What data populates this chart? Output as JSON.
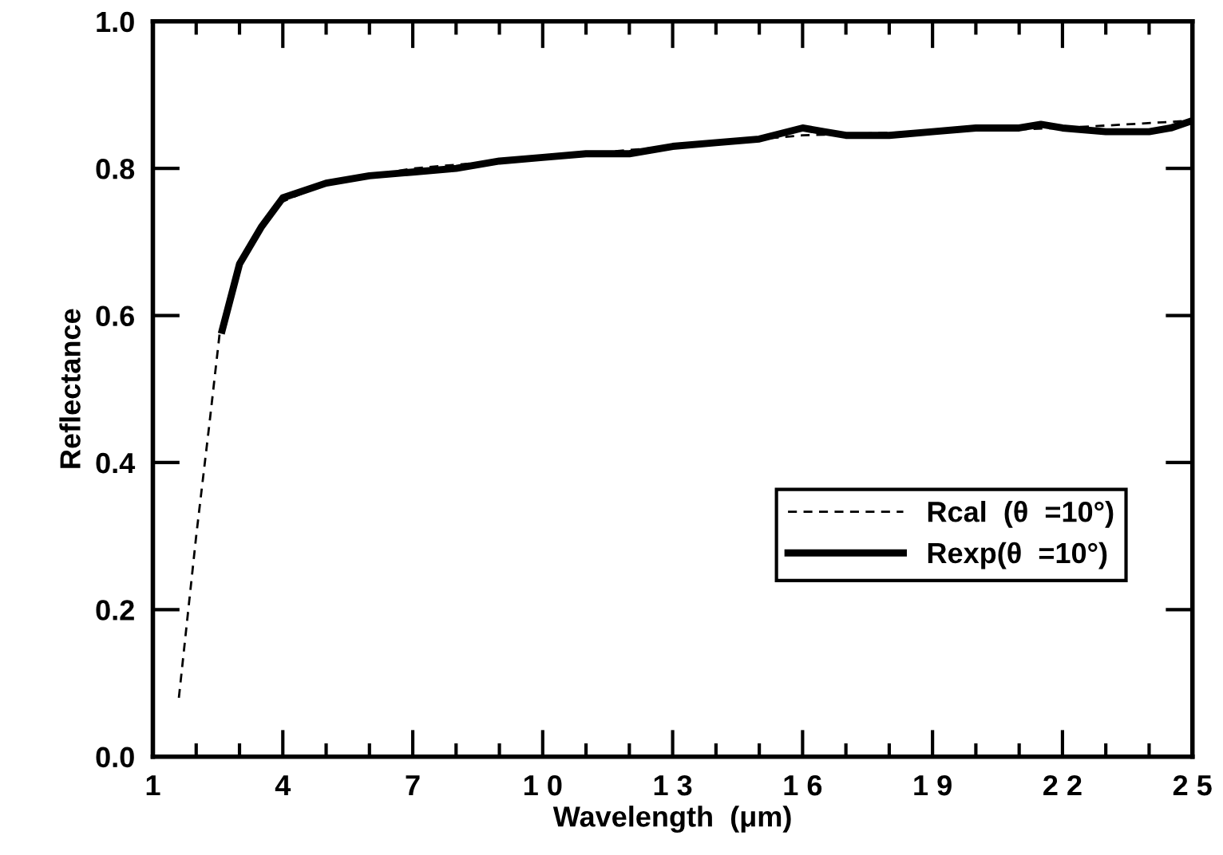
{
  "chart_data": {
    "type": "line",
    "xlabel": "Wavelength  (μm)",
    "ylabel": "Reflectance",
    "xlim": [
      1,
      25
    ],
    "ylim": [
      0,
      1
    ],
    "xticks": [
      1,
      4,
      7,
      {
        "value": 10,
        "label": "1 0"
      },
      {
        "value": 13,
        "label": "1 3"
      },
      {
        "value": 16,
        "label": "1 6"
      },
      {
        "value": 19,
        "label": "1 9"
      },
      {
        "value": 22,
        "label": "2 2"
      },
      {
        "value": 25,
        "label": "2 5"
      },
      {
        "value": 2,
        "label": null
      },
      {
        "value": 3,
        "label": null
      },
      {
        "value": 5,
        "label": null
      },
      {
        "value": 6,
        "label": null
      },
      {
        "value": 8,
        "label": null
      },
      {
        "value": 9,
        "label": null
      },
      {
        "value": 11,
        "label": null
      },
      {
        "value": 12,
        "label": null
      },
      {
        "value": 14,
        "label": null
      },
      {
        "value": 15,
        "label": null
      },
      {
        "value": 17,
        "label": null
      },
      {
        "value": 18,
        "label": null
      },
      {
        "value": 20,
        "label": null
      },
      {
        "value": 21,
        "label": null
      },
      {
        "value": 23,
        "label": null
      },
      {
        "value": 24,
        "label": null
      }
    ],
    "yticks": [
      {
        "value": 0,
        "label": "0.0"
      },
      0.2,
      0.4,
      0.6,
      0.8,
      {
        "value": 1,
        "label": "1.0"
      }
    ],
    "grid": false,
    "legend": "bottom right",
    "marker": "none",
    "series": [
      {
        "name": "Rcal  (θ  =10°)",
        "color": "#000000",
        "line_style": "dashed",
        "x": [
          1.6,
          2.0,
          2.3,
          2.55,
          3,
          3.5,
          4,
          5,
          7,
          10,
          13,
          16,
          19,
          22,
          25
        ],
        "values": [
          0.08,
          0.3,
          0.45,
          0.58,
          0.67,
          0.72,
          0.755,
          0.78,
          0.8,
          0.815,
          0.83,
          0.845,
          0.85,
          0.855,
          0.865
        ]
      },
      {
        "name": "Rexp(θ  =10°)",
        "color": "#000000",
        "line_style": "solid",
        "x": [
          2.6,
          3,
          3.5,
          4,
          5,
          6,
          7,
          8,
          9,
          10,
          11,
          12,
          13,
          14,
          15,
          16,
          16.5,
          17,
          18,
          19,
          20,
          21,
          21.5,
          22,
          23,
          24,
          24.5,
          25
        ],
        "values": [
          0.58,
          0.67,
          0.72,
          0.76,
          0.78,
          0.79,
          0.795,
          0.8,
          0.81,
          0.815,
          0.82,
          0.82,
          0.83,
          0.835,
          0.84,
          0.855,
          0.85,
          0.845,
          0.845,
          0.85,
          0.855,
          0.855,
          0.86,
          0.855,
          0.85,
          0.85,
          0.855,
          0.865
        ]
      }
    ]
  }
}
